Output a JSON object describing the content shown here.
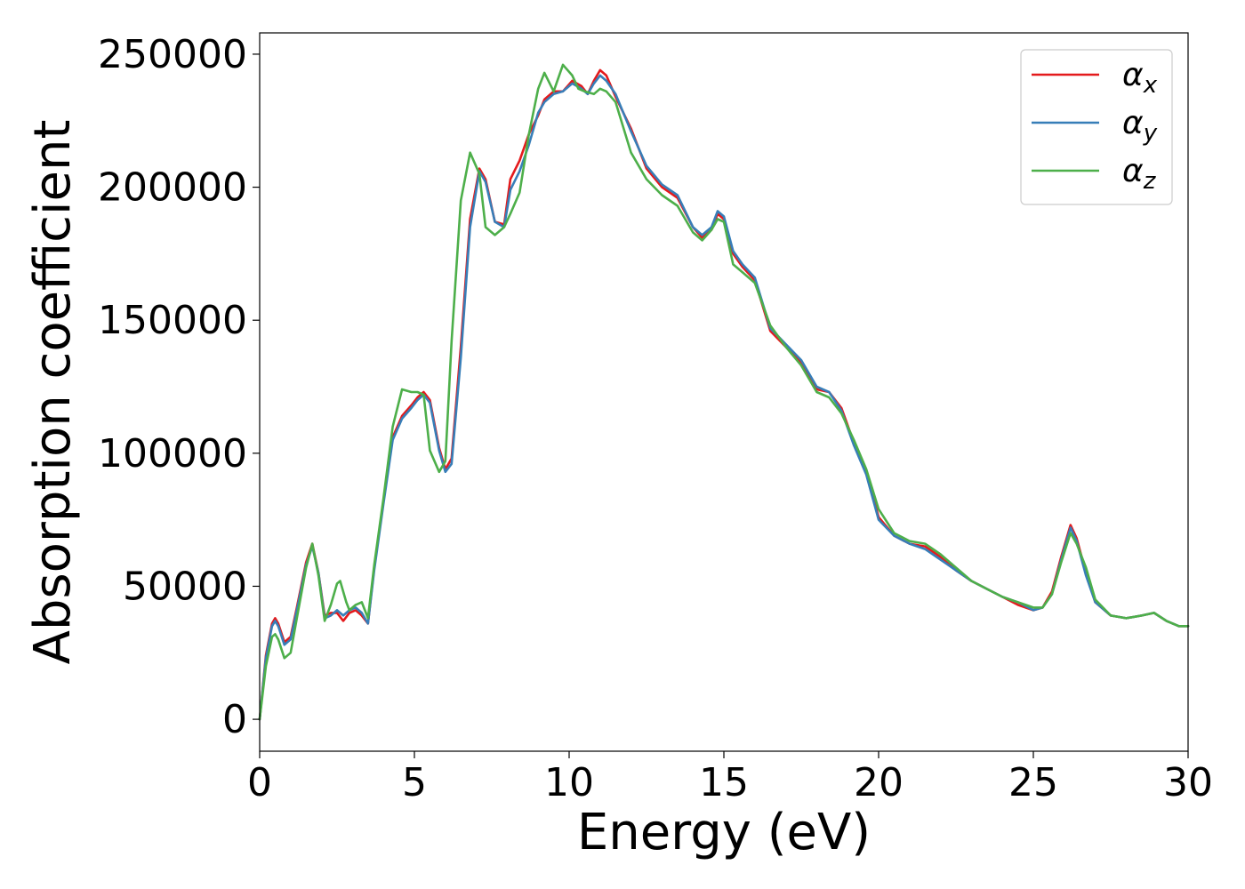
{
  "chart_data": {
    "type": "line",
    "title": "",
    "xlabel": "Energy (eV)",
    "ylabel": "Absorption coefficient",
    "xlim": [
      0,
      30
    ],
    "ylim": [
      -12000,
      258000
    ],
    "xticks": [
      0,
      5,
      10,
      15,
      20,
      25,
      30
    ],
    "xtick_labels": [
      "0",
      "5",
      "10",
      "15",
      "20",
      "25",
      "30"
    ],
    "yticks": [
      0,
      50000,
      100000,
      150000,
      200000,
      250000
    ],
    "ytick_labels": [
      "0",
      "50000",
      "100000",
      "150000",
      "200000",
      "250000"
    ],
    "grid": false,
    "legend_position": "top-right",
    "series": [
      {
        "name": "αx",
        "name_base": "α",
        "name_sub": "x",
        "color": "#e41a1c",
        "x": [
          0,
          0.2,
          0.4,
          0.5,
          0.6,
          0.8,
          1.0,
          1.2,
          1.5,
          1.7,
          1.9,
          2.1,
          2.3,
          2.5,
          2.7,
          2.9,
          3.1,
          3.3,
          3.5,
          3.7,
          4.0,
          4.3,
          4.6,
          4.9,
          5.1,
          5.3,
          5.5,
          5.8,
          6.0,
          6.2,
          6.5,
          6.8,
          7.1,
          7.3,
          7.6,
          7.9,
          8.1,
          8.4,
          8.7,
          9.0,
          9.2,
          9.5,
          9.8,
          10.1,
          10.4,
          10.6,
          10.8,
          11.0,
          11.2,
          11.5,
          12.0,
          12.5,
          13.0,
          13.5,
          14.0,
          14.3,
          14.6,
          14.8,
          15.0,
          15.3,
          15.6,
          16.0,
          16.5,
          17.0,
          17.5,
          18.0,
          18.4,
          18.8,
          19.2,
          19.6,
          20.0,
          20.5,
          21.0,
          21.5,
          22.0,
          22.5,
          23.0,
          23.5,
          24.0,
          24.5,
          25.0,
          25.3,
          25.6,
          25.9,
          26.2,
          26.4,
          26.7,
          27.0,
          27.5,
          28.0,
          28.5,
          28.9,
          29.3,
          29.7,
          30.0
        ],
        "y": [
          0,
          24000,
          36000,
          38000,
          36000,
          29000,
          31000,
          42000,
          59000,
          66000,
          55000,
          39000,
          40000,
          40000,
          37000,
          40000,
          41000,
          39000,
          36000,
          57000,
          82000,
          106000,
          114000,
          118000,
          121000,
          123000,
          120000,
          102000,
          94000,
          98000,
          140000,
          188000,
          207000,
          203000,
          187000,
          186000,
          203000,
          210000,
          220000,
          227000,
          233000,
          236000,
          236000,
          240000,
          238000,
          235000,
          240000,
          244000,
          242000,
          234000,
          222000,
          207000,
          200000,
          196000,
          185000,
          181000,
          184000,
          190000,
          188000,
          175000,
          170000,
          165000,
          146000,
          140000,
          134000,
          124000,
          123000,
          117000,
          104000,
          93000,
          76000,
          69000,
          66000,
          65000,
          61000,
          56000,
          52000,
          49000,
          46000,
          43000,
          41000,
          42000,
          48000,
          61000,
          73000,
          68000,
          55000,
          44000,
          39000,
          38000,
          39000,
          40000,
          37000,
          35000,
          35000
        ]
      },
      {
        "name": "αy",
        "name_base": "α",
        "name_sub": "y",
        "color": "#377eb8",
        "x": [
          0,
          0.2,
          0.4,
          0.5,
          0.6,
          0.8,
          1.0,
          1.2,
          1.5,
          1.7,
          1.9,
          2.1,
          2.3,
          2.5,
          2.7,
          2.9,
          3.1,
          3.3,
          3.5,
          3.7,
          4.0,
          4.3,
          4.6,
          4.9,
          5.1,
          5.3,
          5.5,
          5.8,
          6.0,
          6.2,
          6.5,
          6.8,
          7.1,
          7.3,
          7.6,
          7.9,
          8.1,
          8.4,
          8.7,
          9.0,
          9.2,
          9.5,
          9.8,
          10.1,
          10.4,
          10.6,
          10.8,
          11.0,
          11.2,
          11.5,
          12.0,
          12.5,
          13.0,
          13.5,
          14.0,
          14.3,
          14.6,
          14.8,
          15.0,
          15.3,
          15.6,
          16.0,
          16.5,
          17.0,
          17.5,
          18.0,
          18.4,
          18.8,
          19.2,
          19.6,
          20.0,
          20.5,
          21.0,
          21.5,
          22.0,
          22.5,
          23.0,
          23.5,
          24.0,
          24.5,
          25.0,
          25.3,
          25.6,
          25.9,
          26.2,
          26.4,
          26.7,
          27.0,
          27.5,
          28.0,
          28.5,
          28.9,
          29.3,
          29.7,
          30.0
        ],
        "y": [
          0,
          23000,
          35000,
          37000,
          35000,
          28000,
          30000,
          41000,
          58000,
          65000,
          55000,
          38000,
          39000,
          41000,
          39000,
          41000,
          42000,
          40000,
          36000,
          56000,
          81000,
          105000,
          113000,
          117000,
          120000,
          122000,
          119000,
          101000,
          93000,
          96000,
          136000,
          185000,
          206000,
          202000,
          187000,
          185000,
          199000,
          206000,
          216000,
          228000,
          232000,
          235000,
          236000,
          239000,
          237000,
          235000,
          239000,
          242000,
          240000,
          235000,
          221000,
          208000,
          201000,
          197000,
          185000,
          182000,
          185000,
          191000,
          189000,
          176000,
          171000,
          166000,
          147000,
          141000,
          135000,
          125000,
          123000,
          116000,
          103000,
          92000,
          75000,
          69000,
          66000,
          64000,
          60000,
          56000,
          52000,
          49000,
          46000,
          44000,
          41000,
          42000,
          47000,
          60000,
          72000,
          67000,
          54000,
          44000,
          39000,
          38000,
          39000,
          40000,
          37000,
          35000,
          35000
        ]
      },
      {
        "name": "αz",
        "name_base": "α",
        "name_sub": "z",
        "color": "#4daf4a",
        "x": [
          0,
          0.2,
          0.4,
          0.5,
          0.6,
          0.8,
          1.0,
          1.2,
          1.5,
          1.7,
          1.9,
          2.1,
          2.3,
          2.5,
          2.6,
          2.8,
          2.9,
          3.1,
          3.3,
          3.5,
          3.7,
          4.0,
          4.3,
          4.6,
          4.9,
          5.1,
          5.3,
          5.5,
          5.8,
          6.0,
          6.2,
          6.5,
          6.8,
          7.1,
          7.3,
          7.6,
          7.9,
          8.1,
          8.4,
          8.7,
          9.0,
          9.2,
          9.5,
          9.8,
          10.1,
          10.3,
          10.5,
          10.8,
          11.0,
          11.2,
          11.5,
          12.0,
          12.5,
          13.0,
          13.5,
          14.0,
          14.3,
          14.6,
          14.8,
          15.0,
          15.3,
          15.6,
          16.0,
          16.5,
          17.0,
          17.5,
          18.0,
          18.4,
          18.8,
          19.2,
          19.6,
          20.0,
          20.5,
          21.0,
          21.5,
          22.0,
          22.5,
          23.0,
          23.5,
          24.0,
          24.5,
          25.0,
          25.3,
          25.6,
          25.9,
          26.2,
          26.4,
          26.7,
          27.0,
          27.5,
          28.0,
          28.5,
          28.9,
          29.3,
          29.7,
          30.0
        ],
        "y": [
          0,
          20000,
          31000,
          32000,
          30000,
          23000,
          25000,
          38000,
          57000,
          66000,
          54000,
          37000,
          43000,
          51000,
          52000,
          44000,
          41000,
          43000,
          44000,
          38000,
          58000,
          83000,
          110000,
          124000,
          123000,
          123000,
          122000,
          101000,
          93000,
          97000,
          142000,
          195000,
          213000,
          205000,
          185000,
          182000,
          185000,
          190000,
          198000,
          220000,
          237000,
          243000,
          236000,
          246000,
          242000,
          237000,
          236000,
          235000,
          237000,
          236000,
          232000,
          213000,
          203000,
          197000,
          193000,
          183000,
          180000,
          184000,
          188000,
          187000,
          171000,
          168000,
          164000,
          148000,
          140000,
          133000,
          123000,
          121000,
          115000,
          105000,
          94000,
          79000,
          70000,
          67000,
          66000,
          62000,
          57000,
          52000,
          49000,
          46000,
          44000,
          42000,
          42000,
          47000,
          59000,
          70000,
          66000,
          57000,
          45000,
          39000,
          38000,
          39000,
          40000,
          37000,
          35000,
          35000
        ]
      }
    ]
  }
}
